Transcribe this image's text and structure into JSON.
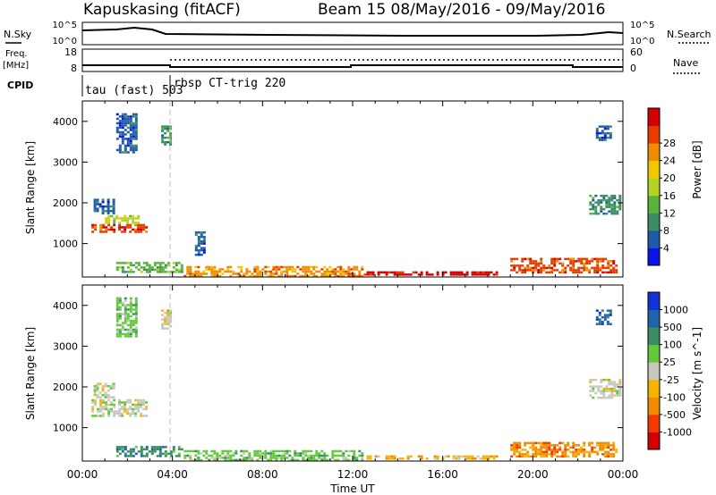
{
  "header": {
    "station": "Kapuskasing (fitACF)",
    "beam_date": "Beam 15 08/May/2016 - 09/May/2016"
  },
  "strips": {
    "nsky_label": "N.Sky",
    "nsky_top": "10^5",
    "nsky_bottom": "10^0",
    "nsearch_label": "N.Search",
    "nsearch_top": "10^5",
    "nsearch_bottom": "10^0",
    "freq_label": "Freq.",
    "freq_unit": "[MHz]",
    "freq_top": "18",
    "freq_bottom": "8",
    "nave_label": "Nave",
    "nave_top": "60",
    "nave_bottom": "0",
    "cpid_label": "CPID",
    "cpid_1": "tau (fast) 503",
    "cpid_2": "rbsp CT-trig 220"
  },
  "colors": {
    "power": [
      "#0a14e6",
      "#1e5aa5",
      "#3c8c64",
      "#5ab43c",
      "#b4d228",
      "#f0c800",
      "#f08c00",
      "#e63c00",
      "#d20000"
    ],
    "velocity": [
      "#d20000",
      "#f03c00",
      "#f08c00",
      "#f5b400",
      "#c8c8be",
      "#64c83c",
      "#3c8c64",
      "#1e64aa",
      "#1432d2"
    ]
  },
  "chart_data": [
    {
      "type": "heatmap",
      "name": "power",
      "xlabel": "",
      "ylabel": "Slant Range [km]",
      "xlim": [
        0,
        24
      ],
      "ylim": [
        180,
        4500
      ],
      "yticks": [
        "1000",
        "2000",
        "3000",
        "4000"
      ],
      "colorbar_label": "Power [dB]",
      "colorbar_ticks": [
        "4",
        "8",
        "12",
        "16",
        "20",
        "24",
        "28"
      ],
      "regions": [
        {
          "x0": 0.4,
          "x1": 2.9,
          "y0": 1250,
          "y1": 1480,
          "level": 7
        },
        {
          "x0": 1.0,
          "x1": 2.6,
          "y0": 1480,
          "y1": 1700,
          "level": 4
        },
        {
          "x0": 0.5,
          "x1": 1.5,
          "y0": 1700,
          "y1": 2100,
          "level": 1
        },
        {
          "x0": 1.5,
          "x1": 2.5,
          "y0": 3200,
          "y1": 4200,
          "level": 1
        },
        {
          "x0": 3.5,
          "x1": 4.0,
          "y0": 3400,
          "y1": 3900,
          "level": 2
        },
        {
          "x0": 1.5,
          "x1": 4.5,
          "y0": 300,
          "y1": 550,
          "level": 3
        },
        {
          "x0": 4.5,
          "x1": 12.5,
          "y0": 200,
          "y1": 450,
          "level": 6
        },
        {
          "x0": 12.5,
          "x1": 18.5,
          "y0": 190,
          "y1": 320,
          "level": 8
        },
        {
          "x0": 19.0,
          "x1": 23.8,
          "y0": 250,
          "y1": 650,
          "level": 7
        },
        {
          "x0": 22.5,
          "x1": 23.9,
          "y0": 1700,
          "y1": 2200,
          "level": 2
        },
        {
          "x0": 5.0,
          "x1": 5.5,
          "y0": 700,
          "y1": 1300,
          "level": 1
        },
        {
          "x0": 22.8,
          "x1": 23.5,
          "y0": 3500,
          "y1": 3900,
          "level": 1
        }
      ]
    },
    {
      "type": "heatmap",
      "name": "velocity",
      "xlabel": "Time UT",
      "ylabel": "Slant Range [km]",
      "xlim": [
        0,
        24
      ],
      "ylim": [
        180,
        4500
      ],
      "xticks": [
        "00:00",
        "04:00",
        "08:00",
        "12:00",
        "16:00",
        "20:00",
        "00:00"
      ],
      "yticks": [
        "1000",
        "2000",
        "3000",
        "4000"
      ],
      "colorbar_label": "Velocity [m s^-1]",
      "colorbar_ticks": [
        "-1000",
        "-500",
        "-100",
        "-25",
        "25",
        "100",
        "500",
        "1000"
      ],
      "regions": [
        {
          "x0": 0.4,
          "x1": 2.9,
          "y0": 1250,
          "y1": 1700,
          "level": 4
        },
        {
          "x0": 0.5,
          "x1": 1.5,
          "y0": 1700,
          "y1": 2100,
          "level": 4
        },
        {
          "x0": 1.5,
          "x1": 2.5,
          "y0": 3200,
          "y1": 4200,
          "level": 5
        },
        {
          "x0": 3.5,
          "x1": 4.0,
          "y0": 3400,
          "y1": 3900,
          "level": 4
        },
        {
          "x0": 1.5,
          "x1": 4.5,
          "y0": 300,
          "y1": 550,
          "level": 6
        },
        {
          "x0": 4.5,
          "x1": 12.5,
          "y0": 200,
          "y1": 450,
          "level": 5
        },
        {
          "x0": 12.5,
          "x1": 18.5,
          "y0": 190,
          "y1": 320,
          "level": 3
        },
        {
          "x0": 19.0,
          "x1": 23.8,
          "y0": 250,
          "y1": 650,
          "level": 2
        },
        {
          "x0": 22.5,
          "x1": 23.9,
          "y0": 1700,
          "y1": 2200,
          "level": 4
        },
        {
          "x0": 22.8,
          "x1": 23.5,
          "y0": 3500,
          "y1": 3900,
          "level": 7
        }
      ]
    }
  ]
}
